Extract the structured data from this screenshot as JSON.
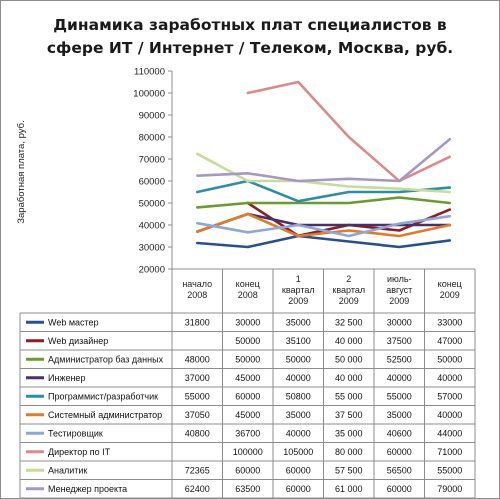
{
  "chart_data": {
    "type": "line",
    "title": [
      "Динамика заработных плат специалистов в",
      "сфере ИТ / Интернет / Телеком, Москва, руб."
    ],
    "ylabel": "Заработная плата, руб.",
    "xlabel": "",
    "ylim": [
      20000,
      110000
    ],
    "yticks": [
      "20000",
      "30000",
      "40000",
      "50000",
      "60000",
      "70000",
      "80000",
      "90000",
      "100000",
      "110000"
    ],
    "grid": false,
    "legend": "data-table",
    "categories": [
      [
        "начало",
        "2008"
      ],
      [
        "конец",
        "2008"
      ],
      [
        "1",
        "квартал",
        "2009"
      ],
      [
        "2",
        "квартал",
        "2009"
      ],
      [
        "июль-",
        "август",
        "2009"
      ],
      [
        "конец",
        "2009"
      ]
    ],
    "series": [
      {
        "name": "Web мастер",
        "color": "#2a4f8f",
        "values": [
          31800,
          30000,
          35000,
          32500,
          30000,
          33000
        ],
        "labels": [
          "31800",
          "30000",
          "35000",
          "32 500",
          "30000",
          "33000"
        ]
      },
      {
        "name": "Web дизайнер",
        "color": "#8b1f1f",
        "values": [
          null,
          50000,
          35100,
          40000,
          37500,
          47000
        ],
        "labels": [
          "",
          "50000",
          "35100",
          "40 000",
          "37500",
          "47000"
        ]
      },
      {
        "name": "Администратор баз данных",
        "color": "#6b9a2e",
        "values": [
          48000,
          50000,
          50000,
          50000,
          52500,
          50000
        ],
        "labels": [
          "48000",
          "50000",
          "50000",
          "50 000",
          "52500",
          "50000"
        ]
      },
      {
        "name": "Инженер",
        "color": "#4a2f6e",
        "values": [
          37000,
          45000,
          40000,
          40000,
          40000,
          40000
        ],
        "labels": [
          "37000",
          "45000",
          "40000",
          "40 000",
          "40000",
          "40000"
        ]
      },
      {
        "name": "Программист/разработчик",
        "color": "#2b8da6",
        "values": [
          55000,
          60000,
          50800,
          55000,
          55000,
          57000
        ],
        "labels": [
          "55000",
          "60000",
          "50800",
          "55 000",
          "55000",
          "57000"
        ]
      },
      {
        "name": "Системный администратор",
        "color": "#e07b2a",
        "values": [
          37050,
          45000,
          35000,
          37500,
          35000,
          40000
        ],
        "labels": [
          "37050",
          "45000",
          "35000",
          "37 500",
          "35000",
          "40000"
        ]
      },
      {
        "name": "Тестировщик",
        "color": "#8da8d8",
        "values": [
          40800,
          36700,
          40000,
          35000,
          40600,
          44000
        ],
        "labels": [
          "40800",
          "36700",
          "40000",
          "35 000",
          "40600",
          "44000"
        ]
      },
      {
        "name": "Директор по IT",
        "color": "#d98a8a",
        "values": [
          null,
          100000,
          105000,
          80000,
          60000,
          71000
        ],
        "labels": [
          "",
          "100000",
          "105000",
          "80 000",
          "60000",
          "71000"
        ]
      },
      {
        "name": "Аналитик",
        "color": "#c5dc9a",
        "values": [
          72365,
          60000,
          60000,
          57500,
          56500,
          55000
        ],
        "labels": [
          "72365",
          "60000",
          "60000",
          "57 500",
          "56500",
          "55000"
        ]
      },
      {
        "name": "Менеджер проекта",
        "color": "#a797c4",
        "values": [
          62400,
          63500,
          60000,
          61000,
          60000,
          79000
        ],
        "labels": [
          "62400",
          "63500",
          "60000",
          "61 000",
          "60000",
          "79000"
        ]
      }
    ]
  }
}
